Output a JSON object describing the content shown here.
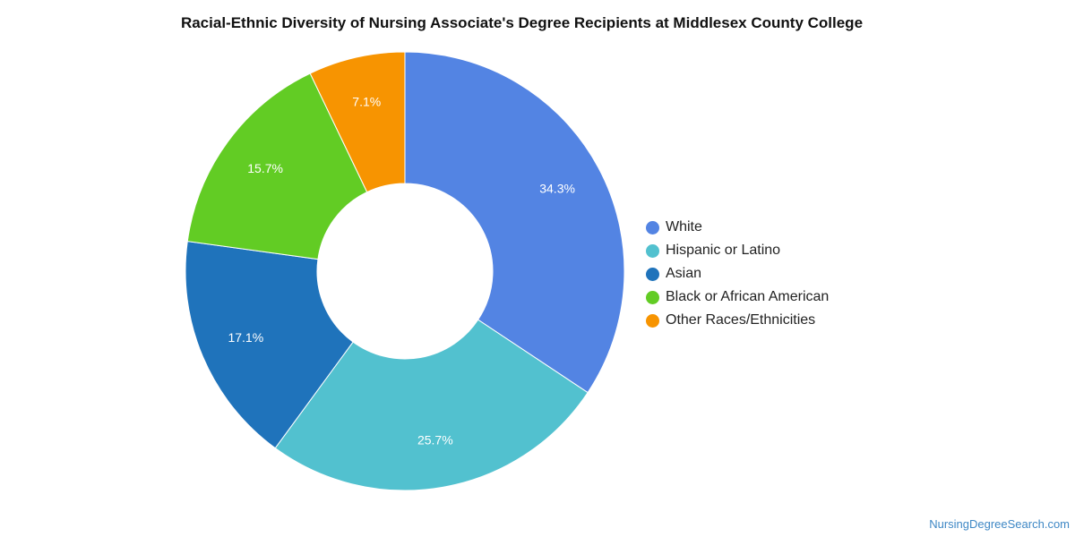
{
  "chart_data": {
    "type": "pie",
    "title": "Racial-Ethnic Diversity of Nursing Associate's Degree Recipients at Middlesex County College",
    "donut": true,
    "legend_position": "right",
    "series": [
      {
        "name": "White",
        "value": 34.3,
        "label": "34.3%",
        "color": "#5384e3"
      },
      {
        "name": "Hispanic or Latino",
        "value": 25.7,
        "label": "25.7%",
        "color": "#52c1cf"
      },
      {
        "name": "Asian",
        "value": 17.1,
        "label": "17.1%",
        "color": "#1f73bb"
      },
      {
        "name": "Black or African American",
        "value": 15.7,
        "label": "15.7%",
        "color": "#62cc24"
      },
      {
        "name": "Other Races/Ethnicities",
        "value": 7.1,
        "label": "7.1%",
        "color": "#f79401"
      }
    ]
  },
  "footer": {
    "source": "NursingDegreeSearch.com"
  }
}
